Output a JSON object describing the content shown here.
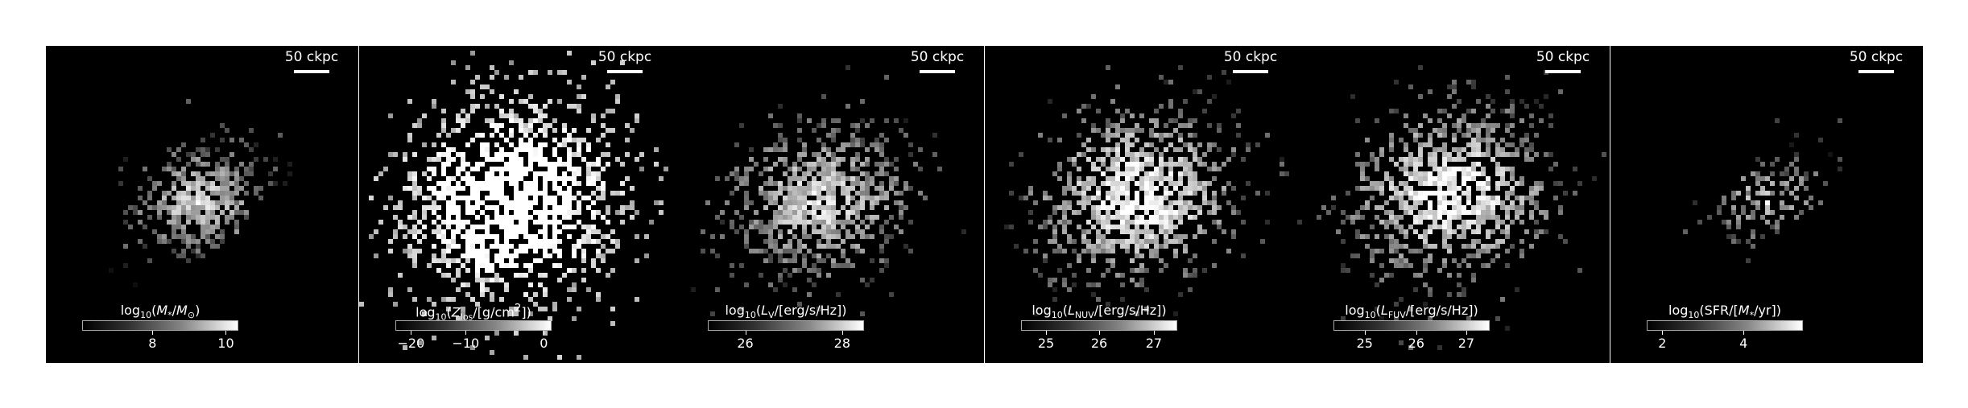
{
  "panels": [
    {
      "scale_label": "50 ckpc",
      "colorbar_label_html": "log<sub>10</sub>(<i>M</i><sub>*</sub>/<i>M</i><sub>⊙</sub>)",
      "colorbar_label_text": "log10(M*/M⊙)",
      "ticks": [
        {
          "label": "8",
          "frac": 0.45
        },
        {
          "label": "10",
          "frac": 0.92
        }
      ]
    },
    {
      "scale_label": "50 ckpc",
      "colorbar_label_html": "log<sub>10</sub>(<i>Z</i><sub>los</sub>/[g/cm<sup>2</sup>])",
      "colorbar_label_text": "log10(Zlos/[g/cm2])",
      "ticks": [
        {
          "label": "−20",
          "frac": 0.1
        },
        {
          "label": "−10",
          "frac": 0.45
        },
        {
          "label": "0",
          "frac": 0.95
        }
      ]
    },
    {
      "scale_label": "50 ckpc",
      "colorbar_label_html": "log<sub>10</sub>(<i>L</i><sub>V</sub>/[erg/s/Hz])",
      "colorbar_label_text": "log10(LV/[erg/s/Hz])",
      "ticks": [
        {
          "label": "26",
          "frac": 0.24
        },
        {
          "label": "28",
          "frac": 0.86
        }
      ]
    },
    {
      "scale_label": "50 ckpc",
      "colorbar_label_html": "log<sub>10</sub>(<i>L</i><sub>NUV</sub>/[erg/s/Hz])",
      "colorbar_label_text": "log10(LNUV/[erg/s/Hz])",
      "ticks": [
        {
          "label": "25",
          "frac": 0.16
        },
        {
          "label": "26",
          "frac": 0.5
        },
        {
          "label": "27",
          "frac": 0.85
        }
      ]
    },
    {
      "scale_label": "50 ckpc",
      "colorbar_label_html": "log<sub>10</sub>(<i>L</i><sub>FUV</sub>/[erg/s/Hz])",
      "colorbar_label_text": "log10(LFUV/[erg/s/Hz])",
      "ticks": [
        {
          "label": "25",
          "frac": 0.2
        },
        {
          "label": "26",
          "frac": 0.53
        },
        {
          "label": "27",
          "frac": 0.85
        }
      ]
    },
    {
      "scale_label": "50 ckpc",
      "colorbar_label_html": "log<sub>10</sub>(SFR/[<i>M</i><sub>*</sub>/yr])",
      "colorbar_label_text": "log10(SFR/[M*/yr])",
      "ticks": [
        {
          "label": "2",
          "frac": 0.1
        },
        {
          "label": "4",
          "frac": 0.62
        }
      ]
    }
  ]
}
